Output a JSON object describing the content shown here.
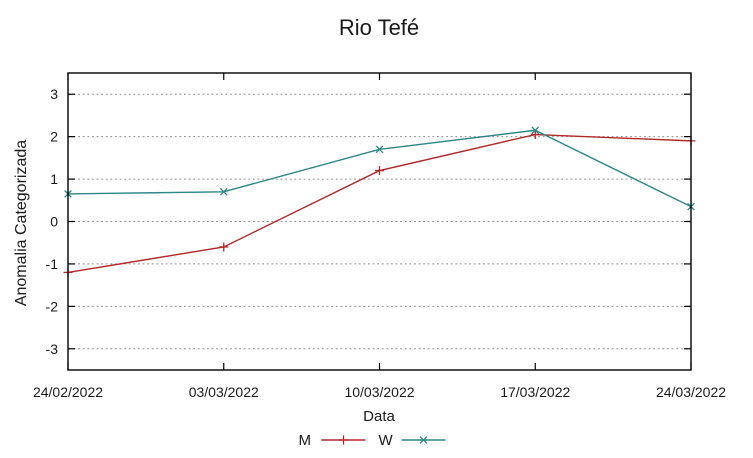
{
  "chart_data": {
    "type": "line",
    "title": "Rio Tefé",
    "xlabel": "Data",
    "ylabel": "Anomalia Categorizada",
    "categories": [
      "24/02/2022",
      "03/03/2022",
      "10/03/2022",
      "17/03/2022",
      "24/03/2022"
    ],
    "series": [
      {
        "name": "M",
        "marker": "plus",
        "color": "#b02828",
        "values": [
          -1.2,
          -0.6,
          1.2,
          2.05,
          1.9
        ]
      },
      {
        "name": "W",
        "marker": "cross",
        "color": "#2e8686",
        "values": [
          0.65,
          0.7,
          1.7,
          2.15,
          0.35
        ]
      }
    ],
    "ylim": [
      -3.5,
      3.5
    ],
    "yticks": [
      -3,
      -2,
      -1,
      0,
      1,
      2,
      3
    ],
    "grid": "horizontal-dotted",
    "grid_color": "#8a8a8a",
    "border_color": "#000000",
    "background": "#ffffff",
    "legend_position": "bottom-center"
  }
}
